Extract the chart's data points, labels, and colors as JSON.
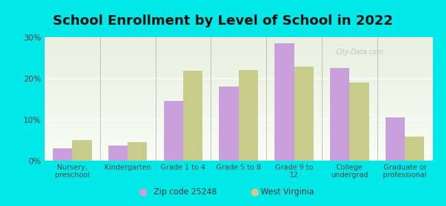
{
  "title": "School Enrollment by Level of School in 2022",
  "categories": [
    "Nursery,\npreschool",
    "Kindergarten",
    "Grade 1 to 4",
    "Grade 5 to 8",
    "Grade 9 to\n12",
    "College\nundergrad",
    "Graduate or\nprofessional"
  ],
  "zip_values": [
    3.0,
    3.7,
    14.5,
    18.0,
    28.5,
    22.5,
    10.5
  ],
  "wv_values": [
    5.0,
    4.5,
    21.8,
    22.0,
    22.8,
    19.0,
    5.8
  ],
  "zip_color": "#c9a0dc",
  "wv_color": "#c8cc8a",
  "background_color": "#00e8e8",
  "plot_bg_top": "#e8f0e0",
  "plot_bg_bottom": "#f8fdf4",
  "ylim": [
    0,
    30
  ],
  "yticks": [
    0,
    10,
    20,
    30
  ],
  "legend_zip": "Zip code 25248",
  "legend_wv": "West Virginia",
  "title_fontsize": 14,
  "bar_width": 0.35,
  "watermark": "City-Data.com"
}
